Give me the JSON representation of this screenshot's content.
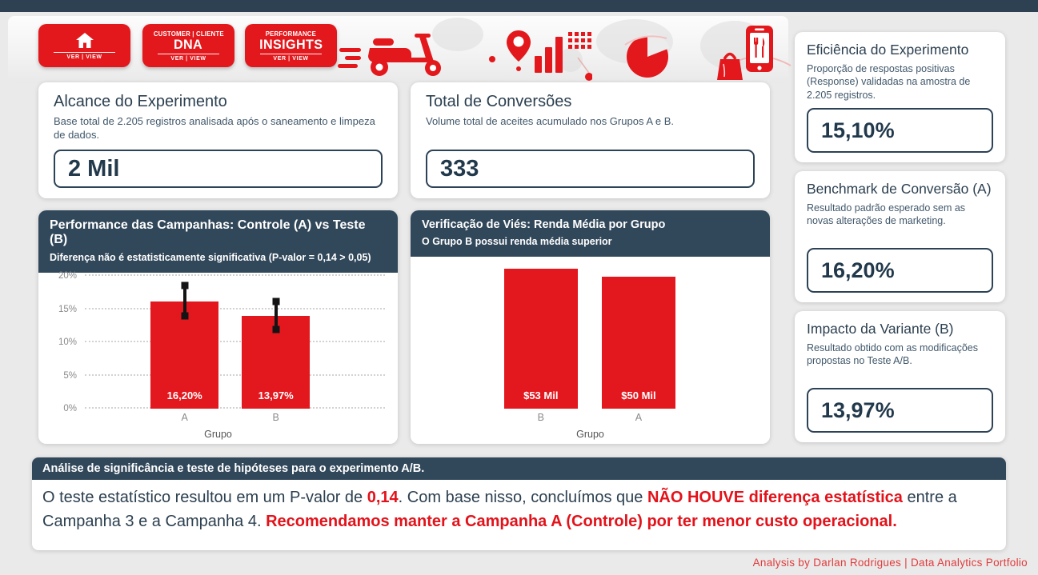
{
  "nav_buttons": [
    {
      "icon": "home-icon",
      "top": "",
      "main": "",
      "footer": "VER | VIEW"
    },
    {
      "icon": "",
      "top": "CUSTOMER | CLIENTE",
      "main": "DNA",
      "footer": "VER | VIEW"
    },
    {
      "icon": "",
      "top": "PERFORMANCE",
      "main": "INSIGHTS",
      "footer": "VER | VIEW"
    }
  ],
  "banner_icons": [
    "scooter-icon",
    "map-pin-icon",
    "mini-bar-chart-icon",
    "dot-grid-icon",
    "pie-chart-icon",
    "food-delivery-phone-icon",
    "shopping-bag-icon"
  ],
  "kpi_cards": [
    {
      "title": "Alcance do Experimento",
      "description": "Base total de 2.205 registros analisada após o saneamento e limpeza de dados.",
      "value": "2 Mil"
    },
    {
      "title": "Total de Conversões",
      "description": "Volume total de aceites acumulado nos Grupos A e B.",
      "value": "333"
    }
  ],
  "side_cards": [
    {
      "title": "Eficiência do Experimento",
      "description": "Proporção de respostas positivas (Response) validadas na amostra de 2.205 registros.",
      "value": "15,10%"
    },
    {
      "title": "Benchmark de Conversão (A)",
      "description": "Resultado padrão esperado sem as novas alterações de marketing.",
      "value": "16,20%"
    },
    {
      "title": "Impacto da Variante (B)",
      "description": "Resultado obtido com as modificações propostas no Teste A/B.",
      "value": "13,97%"
    }
  ],
  "chart_data": [
    {
      "type": "bar",
      "title": "Performance das Campanhas: Controle (A) vs Teste (B)",
      "subtitle": "Diferença não é estatisticamente significativa (P-valor = 0,14 > 0,05)",
      "categories": [
        "A",
        "B"
      ],
      "values": [
        16.2,
        13.97
      ],
      "value_labels": [
        "16,20%",
        "13,97%"
      ],
      "error_bars": [
        {
          "low": 14.0,
          "high": 18.5
        },
        {
          "low": 11.9,
          "high": 16.1
        }
      ],
      "xlabel": "Grupo",
      "ylabel": "",
      "ylim": [
        0,
        20
      ],
      "yticks": [
        "0%",
        "5%",
        "10%",
        "15%",
        "20%"
      ],
      "ytick_values": [
        0,
        5,
        10,
        15,
        20
      ],
      "grid": "dotted",
      "legend": "none",
      "bar_color": "#e3171e",
      "bar_slots": [
        {
          "left": 21.9,
          "width": 22.7
        },
        {
          "left": 52.3,
          "width": 22.7
        }
      ]
    },
    {
      "type": "bar",
      "title": "Verificação de Viés: Renda Média por Grupo",
      "subtitle": "O Grupo B possui renda média superior",
      "categories": [
        "B",
        "A"
      ],
      "values": [
        53,
        50
      ],
      "value_labels": [
        "$53 Mil",
        "$50 Mil"
      ],
      "xlabel": "Grupo",
      "ylabel": "",
      "ylim": [
        0,
        54
      ],
      "grid": "off",
      "legend": "none",
      "bar_color": "#e3171e",
      "bar_slots": [
        {
          "left": 24.2,
          "width": 22.0
        },
        {
          "left": 53.5,
          "width": 22.0
        }
      ]
    }
  ],
  "analysis": {
    "header": "Análise de significância e teste de hipóteses para o experimento A/B.",
    "segments": [
      {
        "text": "O teste estatístico resultou em um P-valor de ",
        "style": "normal"
      },
      {
        "text": "0,14",
        "style": "red-bold"
      },
      {
        "text": ". Com base nisso, concluímos que ",
        "style": "normal"
      },
      {
        "text": "NÃO HOUVE diferença estatística",
        "style": "red-bold"
      },
      {
        "text": " entre a Campanha 3 e a Campanha 4. ",
        "style": "normal"
      },
      {
        "text": "Recomendamos manter a Campanha A (Controle) por ter menor custo operacional.",
        "style": "red-bold"
      }
    ]
  },
  "footer": {
    "credit": "Analysis by Darlan Rodrigues | Data Analytics Portfolio"
  },
  "colors": {
    "accent_red": "#e3171e",
    "navy_header": "#31475a",
    "topbar": "#2d4153",
    "page_bg": "#eaeaea",
    "highlight_red": "#e3121a"
  }
}
